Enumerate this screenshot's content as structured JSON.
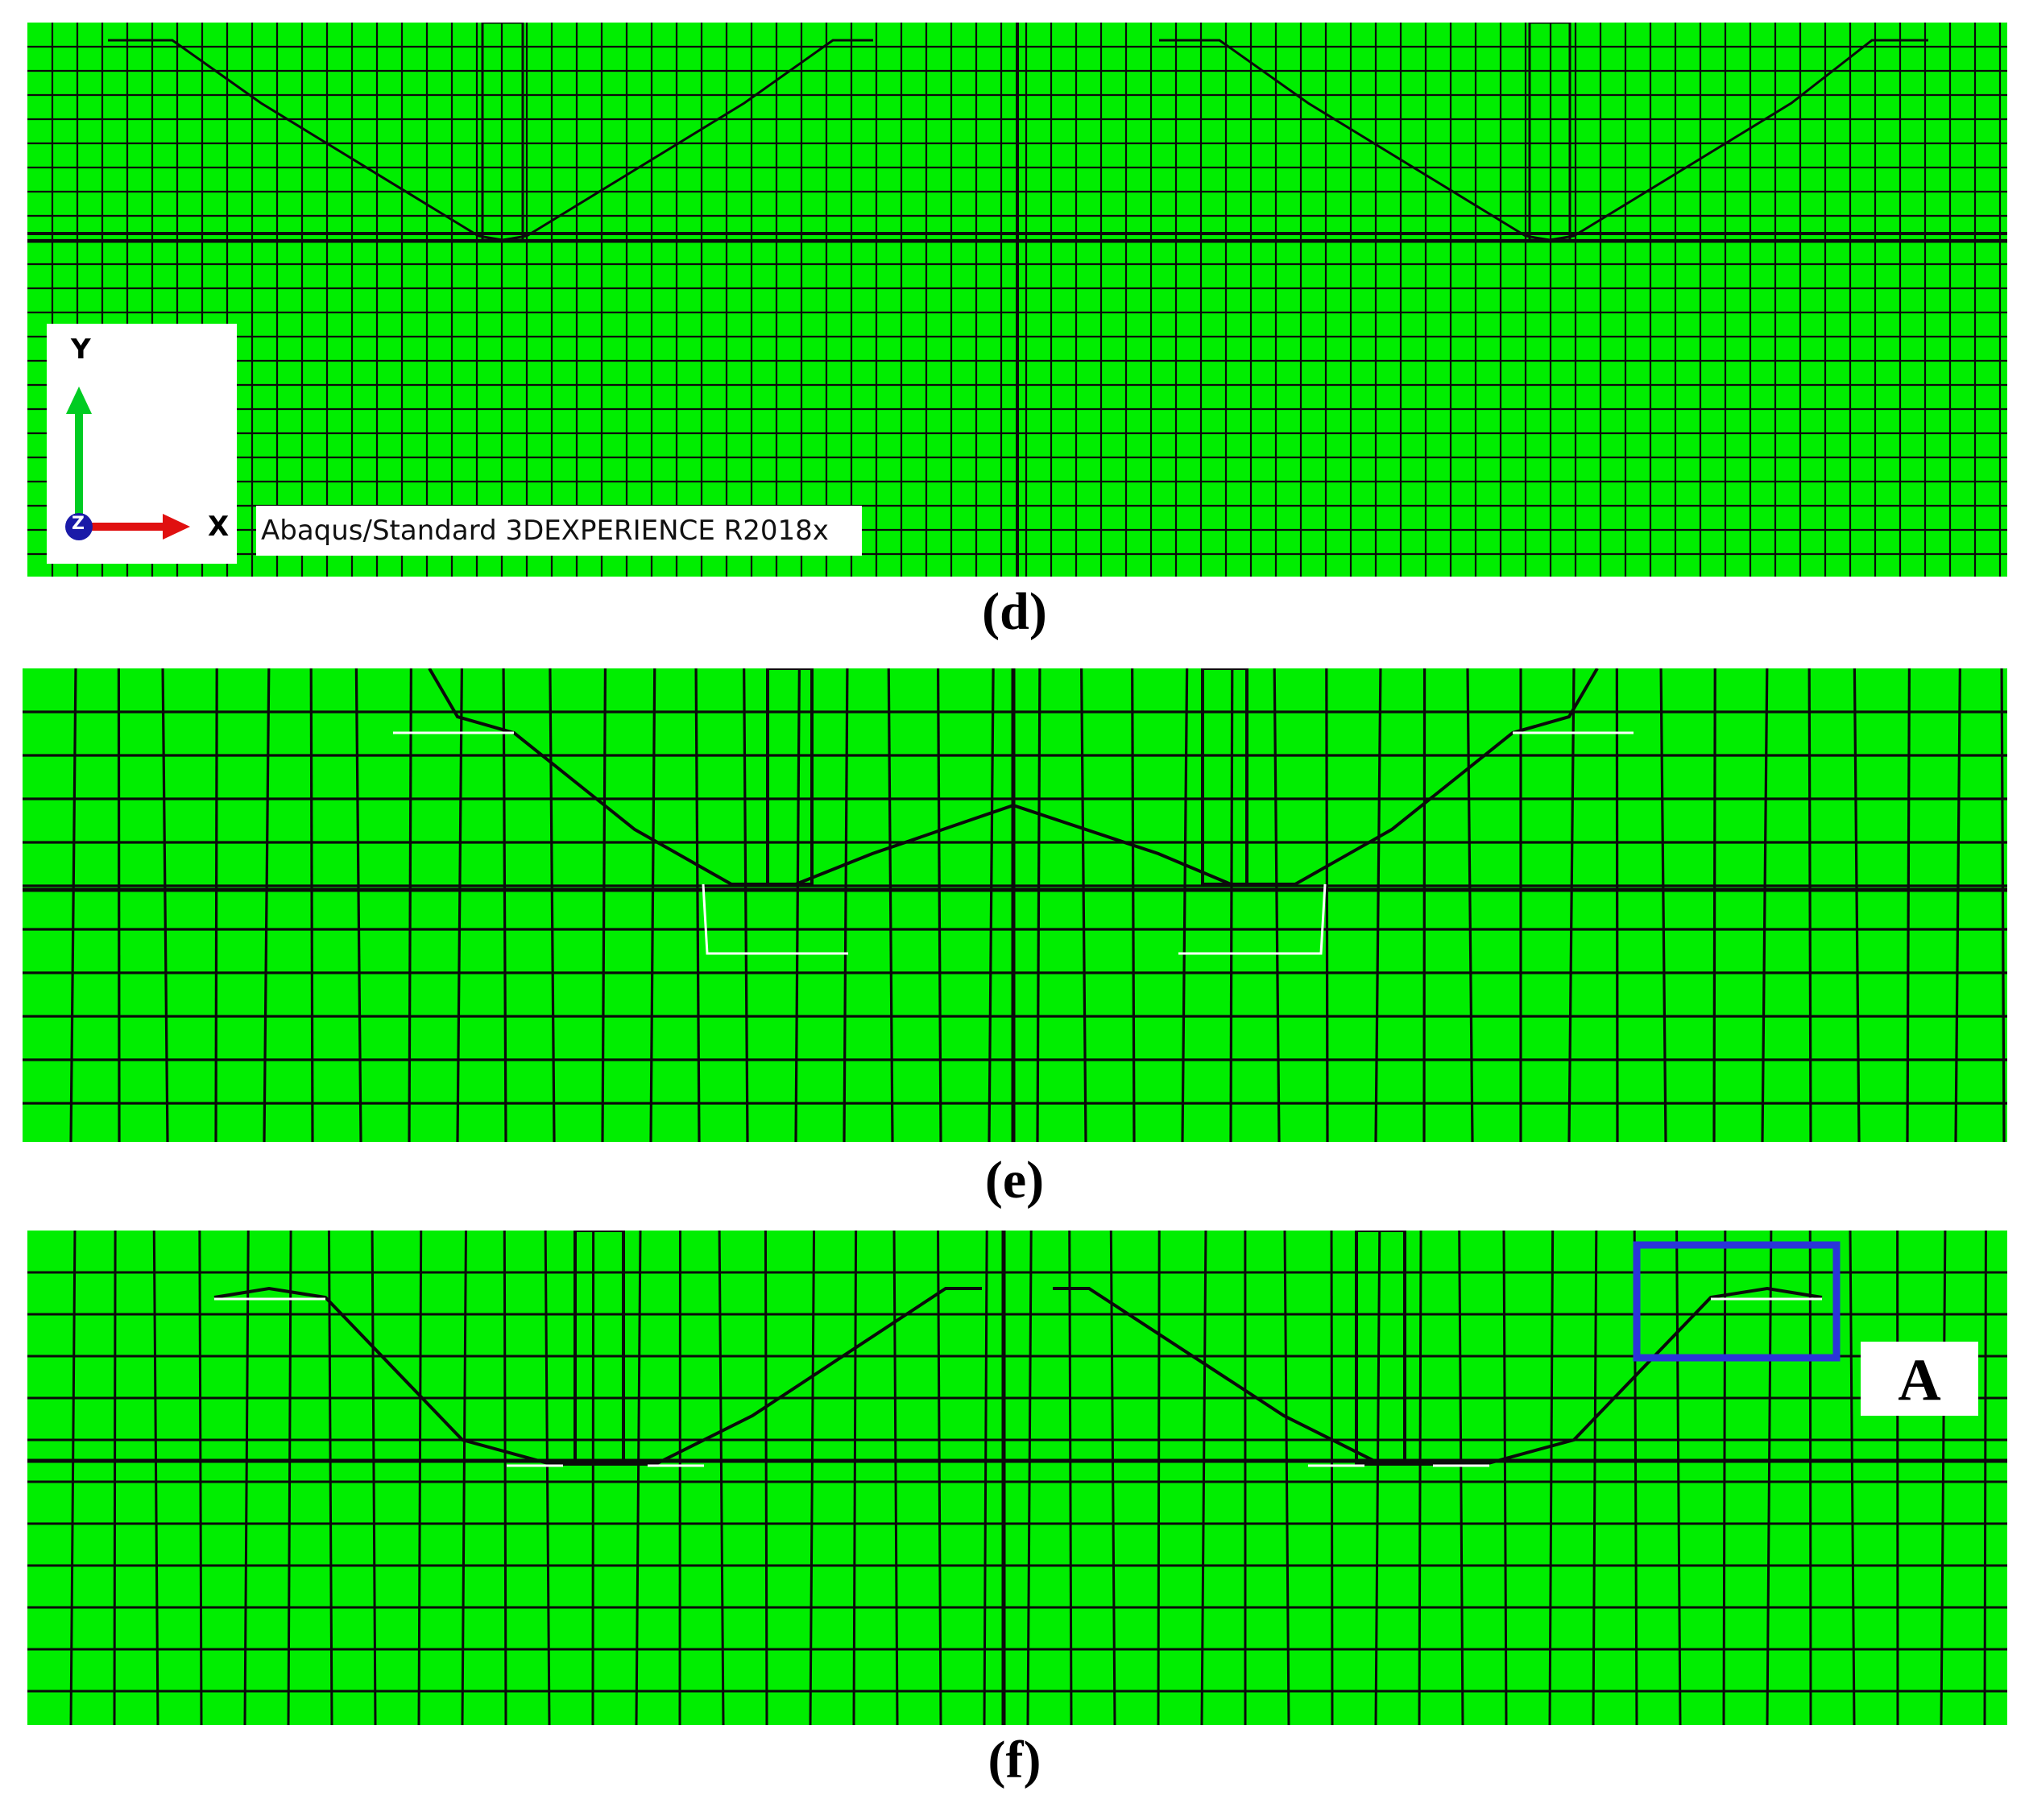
{
  "captions": {
    "d": "(d)",
    "e": "(e)",
    "f": "(f)"
  },
  "triad": {
    "y_label": "Y",
    "x_label": "X",
    "z_label": "Z"
  },
  "version_label": "Abaqus/Standard 3DEXPERIENCE R2018x",
  "detail_label": "A",
  "colors": {
    "mesh_fill": "#00ee00",
    "mesh_line": "#0b0b0b",
    "highlight_box": "#2a35d9",
    "y_axis_arrow": "#00cc22",
    "x_axis_arrow": "#e01010",
    "z_axis_dot": "#1a1aa8"
  }
}
